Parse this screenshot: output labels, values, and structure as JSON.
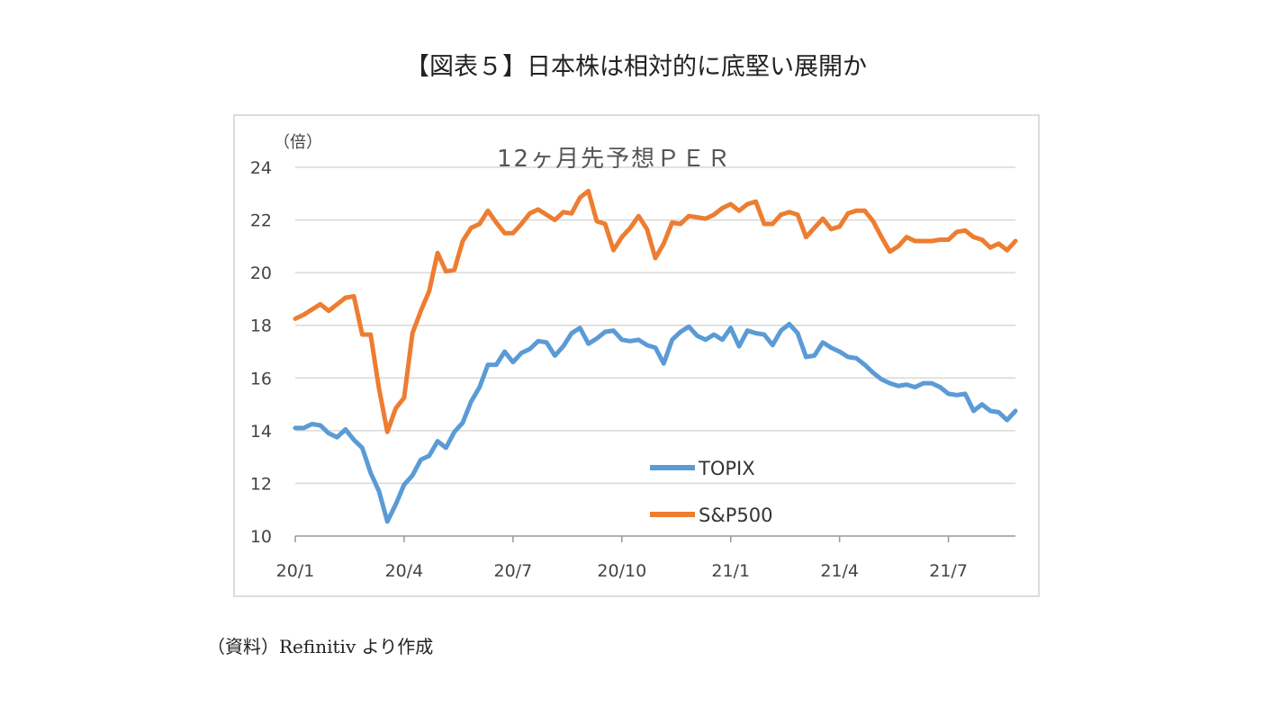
{
  "figure_title": "【図表５】日本株は相対的に底堅い展開か",
  "source_note": "（資料）Refinitiv より作成",
  "chart_data": {
    "type": "line",
    "title": "12ヶ月先予想ＰＥＲ",
    "unit_label": "（倍）",
    "ylim": [
      10,
      24
    ],
    "y_ticks": [
      "10",
      "12",
      "14",
      "16",
      "18",
      "20",
      "22",
      "24"
    ],
    "x_tick_labels": [
      "20/1",
      "20/4",
      "20/7",
      "20/10",
      "21/1",
      "21/4",
      "21/7"
    ],
    "x_tick_index": [
      0,
      13,
      26,
      39,
      52,
      65,
      78
    ],
    "grid": true,
    "legend_position": "inside-bottom-center",
    "series": [
      {
        "name": "TOPIX",
        "color": "#5b9bd5",
        "values": [
          14.1,
          14.1,
          14.25,
          14.2,
          13.9,
          13.75,
          14.05,
          13.65,
          13.35,
          12.4,
          11.7,
          10.55,
          11.2,
          11.95,
          12.3,
          12.9,
          13.05,
          13.6,
          13.35,
          13.95,
          14.3,
          15.1,
          15.65,
          16.5,
          16.5,
          17.0,
          16.6,
          16.95,
          17.1,
          17.4,
          17.35,
          16.85,
          17.2,
          17.7,
          17.9,
          17.3,
          17.5,
          17.75,
          17.8,
          17.45,
          17.4,
          17.45,
          17.25,
          17.15,
          16.55,
          17.45,
          17.75,
          17.95,
          17.6,
          17.45,
          17.65,
          17.45,
          17.9,
          17.2,
          17.8,
          17.7,
          17.65,
          17.25,
          17.8,
          18.05,
          17.7,
          16.8,
          16.85,
          17.35,
          17.15,
          17.0,
          16.8,
          16.75,
          16.5,
          16.2,
          15.95,
          15.8,
          15.7,
          15.75,
          15.65,
          15.8,
          15.8,
          15.65,
          15.4,
          15.35,
          15.4,
          14.75,
          15.0,
          14.75,
          14.7,
          14.4,
          14.75
        ]
      },
      {
        "name": "S&P500",
        "color": "#ed7d31",
        "values": [
          18.25,
          18.4,
          18.6,
          18.8,
          18.55,
          18.8,
          19.05,
          19.1,
          17.65,
          17.65,
          15.6,
          13.95,
          14.85,
          15.25,
          17.7,
          18.55,
          19.3,
          20.75,
          20.05,
          20.1,
          21.2,
          21.7,
          21.85,
          22.35,
          21.9,
          21.5,
          21.5,
          21.85,
          22.25,
          22.4,
          22.2,
          22.0,
          22.3,
          22.25,
          22.85,
          23.1,
          21.95,
          21.85,
          20.85,
          21.35,
          21.7,
          22.15,
          21.65,
          20.55,
          21.1,
          21.9,
          21.85,
          22.15,
          22.1,
          22.05,
          22.2,
          22.45,
          22.6,
          22.35,
          22.6,
          22.7,
          21.85,
          21.85,
          22.2,
          22.3,
          22.2,
          21.35,
          21.7,
          22.05,
          21.65,
          21.75,
          22.25,
          22.35,
          22.35,
          21.95,
          21.35,
          20.8,
          21.0,
          21.35,
          21.2,
          21.2,
          21.2,
          21.25,
          21.25,
          21.55,
          21.6,
          21.35,
          21.25,
          20.95,
          21.1,
          20.85,
          21.2
        ]
      }
    ]
  }
}
